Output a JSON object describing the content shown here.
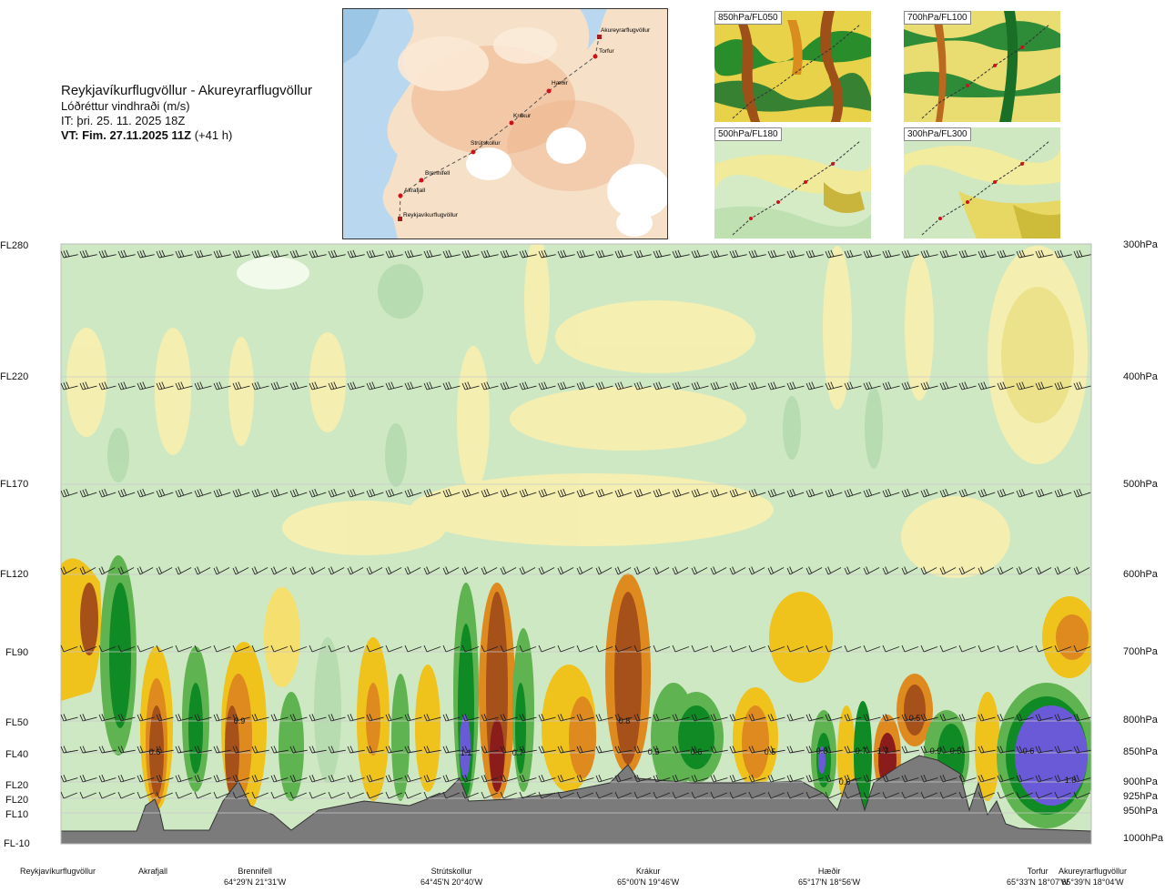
{
  "header": {
    "route": "Reykjavíkurflugvöllur - Akureyrarflugvöllur",
    "subtitle": "Lóðréttur vindhraði (m/s)",
    "issue_time": "IT: þri. 25. 11. 2025 18Z",
    "valid_prefix": "VT: Fim. 27.11.2025 11Z",
    "valid_suffix": "(+41 h)"
  },
  "map": {
    "points": [
      "Akureyrarflugvöllur",
      "Torfur",
      "Hæðir",
      "Krákur",
      "Strútskollur",
      "Brennifell",
      "Akrafjall",
      "Reykjavíkurflugvöllur"
    ]
  },
  "mini_maps": [
    {
      "label": "850hPa/FL050"
    },
    {
      "label": "700hPa/FL100"
    },
    {
      "label": "500hPa/FL180"
    },
    {
      "label": "300hPa/FL300"
    }
  ],
  "colors": {
    "strong_down_blue": "#6a5ad8",
    "down_dark_green": "#0f8a24",
    "down_green": "#5fb350",
    "down_light_green": "#b6dcb0",
    "down_pale_green": "#d8ecd2",
    "neutral": "#f0f8e6",
    "up_pale_yellow": "#faf3b8",
    "up_yellow": "#f5df6e",
    "up_orange_yellow": "#efc21c",
    "up_orange": "#de8a1e",
    "up_brown": "#a6501a",
    "strong_up_red": "#8a1c1c",
    "terrain": "#7b7b7b"
  },
  "chart_data": {
    "type": "heatmap",
    "title": "Lóðréttur vindhraði (m/s)",
    "y_left_ticks": [
      "FL280",
      "FL220",
      "FL170",
      "FL120",
      "FL90",
      "FL50",
      "FL40",
      "FL20",
      "FL20",
      "FL10",
      "FL-10"
    ],
    "y_right_ticks": [
      "300hPa",
      "400hPa",
      "500hPa",
      "600hPa",
      "700hPa",
      "800hPa",
      "850hPa",
      "900hPa",
      "925hPa",
      "950hPa",
      "1000hPa"
    ],
    "x_locations": [
      {
        "name": "Reykjavíkurflugvöllur",
        "coord": ""
      },
      {
        "name": "Akrafjall",
        "coord": ""
      },
      {
        "name": "Brennifell",
        "coord": "64°29'N 21°31'W"
      },
      {
        "name": "Strútskollur",
        "coord": "64°45'N 20°40'W"
      },
      {
        "name": "Krákur",
        "coord": "65°00'N 19°46'W"
      },
      {
        "name": "Hæðir",
        "coord": "65°17'N 18°56'W"
      },
      {
        "name": "Torfur",
        "coord": "65°33'N 18°07'W"
      },
      {
        "name": "Akureyrarflugvöllur",
        "coord": "65°39'N 18°04'W"
      }
    ],
    "annotations": [
      "0.6",
      "0.9",
      "1.1",
      "0.7",
      "0.8",
      "0.5",
      "0.6",
      "0.5",
      "0.8",
      "0.7",
      "1.7",
      "0.6",
      "0.5",
      "0.9",
      "0.5",
      "0.6",
      "1.8",
      "1.6"
    ]
  }
}
